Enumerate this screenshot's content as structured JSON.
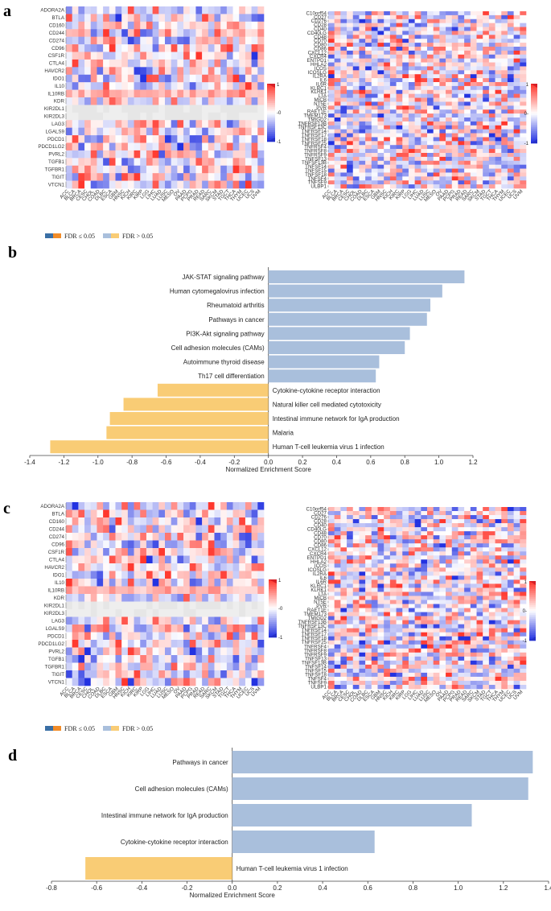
{
  "panels": {
    "a": "a",
    "b": "b",
    "c": "c",
    "d": "d"
  },
  "colors": {
    "blue_fdr_sig": "#3a6fa5",
    "orange_fdr_sig": "#f28c28",
    "blue_bar": "#a9bfdc",
    "orange_bar": "#f9cc75",
    "heat_pos": "#e8202a",
    "heat_neg": "#2732d6",
    "heat_mid": "#ffffff"
  },
  "inhibitory_genes": [
    "ADORA2A",
    "BTLA",
    "CD160",
    "CD244",
    "CD274",
    "CD96",
    "CSF1R",
    "CTLA4",
    "HAVCR2",
    "IDO1",
    "IL10",
    "IL10RB",
    "KDR",
    "KIR2DL1",
    "KIR2DL3",
    "LAG3",
    "LGALS9",
    "PDCD1",
    "PDCD1LG2",
    "PVRL2",
    "TGFB1",
    "TGFBR1",
    "TIGIT",
    "VTCN1"
  ],
  "stimulatory_genes": [
    "C10orf54",
    "CD27",
    "CD276",
    "CD28",
    "CD40",
    "CD40LG",
    "CD48",
    "CD70",
    "CD80",
    "CD86",
    "CXCL12",
    "CXCR4",
    "ENTPD1",
    "HHLA2",
    "ICOS",
    "ICOSLG",
    "IL2RA",
    "IL6",
    "IL6R",
    "KLRC1",
    "KLRK1",
    "LTA",
    "MICB",
    "NT5E",
    "PVR",
    "RAET1E",
    "TMEM173",
    "TMIGD2",
    "TNFRSF13B",
    "TNFRSF13C",
    "TNFRSF14",
    "TNFRSF17",
    "TNFRSF18",
    "TNFRSF25",
    "TNFRSF4",
    "TNFRSF8",
    "TNFRSF9",
    "TNFSF13",
    "TNFSF13B",
    "TNFSF14",
    "TNFSF15",
    "TNFSF18",
    "TNFSF4",
    "TNFSF9",
    "ULBP1"
  ],
  "cancers": [
    "ACC",
    "BLCA",
    "BRCA",
    "CESC",
    "CHOL",
    "COAD",
    "DLBC",
    "ESCA",
    "GBM",
    "HNSC",
    "KICH",
    "KIRC",
    "KIRP",
    "LGG",
    "LIHC",
    "LUAD",
    "LUSC",
    "MESO",
    "OV",
    "PAAD",
    "PCPG",
    "PRAD",
    "READ",
    "SARC",
    "SKCM",
    "STAD",
    "TGCT",
    "THCA",
    "THYM",
    "UCEC",
    "UCS",
    "UVM"
  ],
  "colorbar": {
    "max_label": "1",
    "mid_label": "-0",
    "min_label": "-1",
    "mid_label_right": "0-"
  },
  "legend": {
    "sig_label": "FDR ≤ 0.05",
    "nonsig_label": "FDR > 0.05"
  },
  "chart_data": [
    {
      "id": "b",
      "type": "bar",
      "title": "",
      "xlabel": "Normalized Enrichment Score",
      "ylabel": "",
      "xlim": [
        -1.4,
        1.2
      ],
      "xticks": [
        "-1.4",
        "-1.2",
        "-1.0",
        "-0.8",
        "-0.6",
        "-0.4",
        "-0.2",
        "0.0",
        "0.2",
        "0.4",
        "0.6",
        "0.8",
        "1.0",
        "1.2"
      ],
      "categories": [
        "JAK-STAT signaling pathway",
        "Human cytomegalovirus infection",
        "Rheumatoid arthritis",
        "Pathways in cancer",
        "PI3K-Akt signaling pathway",
        "Cell adhesion molecules (CAMs)",
        "Autoimmune thyroid disease",
        "Th17 cell differentiation",
        "Cytokine-cytokine receptor interaction",
        "Natural killer cell mediated cytotoxicity",
        "Intestinal immune network for IgA production",
        "Malaria",
        "Human T-cell leukemia virus 1 infection"
      ],
      "values": [
        1.15,
        1.02,
        0.95,
        0.93,
        0.83,
        0.8,
        0.65,
        0.63,
        -0.65,
        -0.85,
        -0.93,
        -0.95,
        -1.28
      ]
    },
    {
      "id": "d",
      "type": "bar",
      "title": "",
      "xlabel": "Normalized Enrichment Score",
      "ylabel": "",
      "xlim": [
        -0.8,
        1.4
      ],
      "xticks": [
        "-0.8",
        "-0.6",
        "-0.4",
        "-0.2",
        "0.0",
        "0.2",
        "0.4",
        "0.6",
        "0.8",
        "1.0",
        "1.2",
        "1.4"
      ],
      "categories": [
        "Pathways in cancer",
        "Cell adhesion molecules (CAMs)",
        "Intestinal immune network for IgA production",
        "Cytokine-cytokine receptor interaction",
        "Human T-cell leukemia virus 1 infection"
      ],
      "values": [
        1.33,
        1.31,
        1.06,
        0.63,
        -0.65
      ]
    }
  ]
}
